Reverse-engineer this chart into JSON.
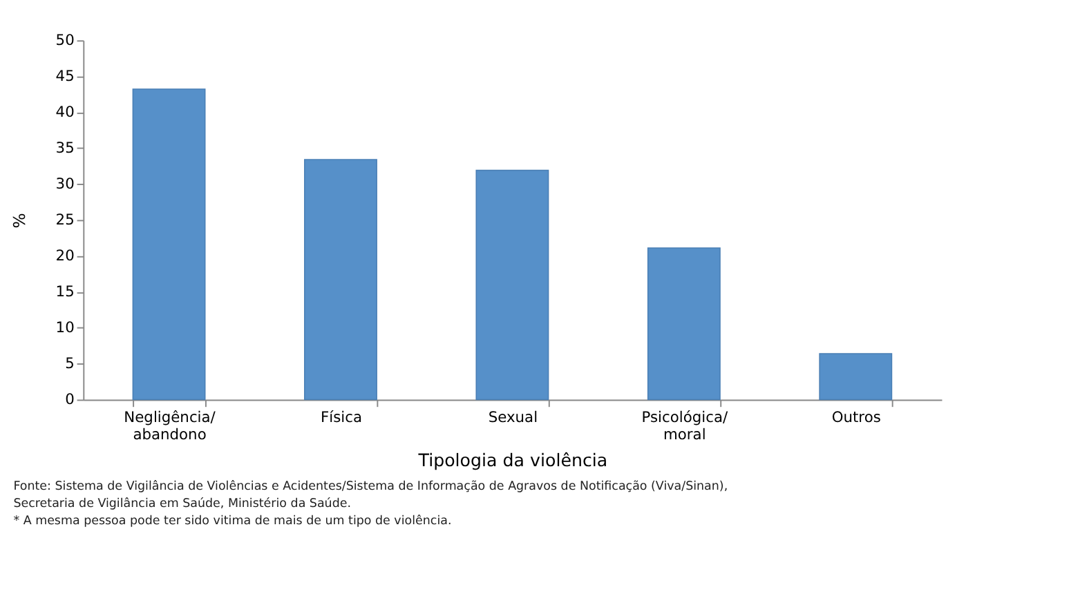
{
  "chart_data": {
    "type": "bar",
    "categories": [
      "Negligência/\nabandono",
      "Física",
      "Sexual",
      "Psicológica/\nmoral",
      "Outros"
    ],
    "values": [
      43.2,
      33.4,
      31.9,
      21.1,
      6.4
    ],
    "color": "#5690c9",
    "xlabel": "Tipologia da violência",
    "ylabel": "%",
    "ylim": [
      0,
      50
    ],
    "yticks": [
      0,
      5,
      10,
      15,
      20,
      25,
      30,
      35,
      40,
      45,
      50
    ],
    "grid": false,
    "annotations": [
      "Fonte: Sistema de Vigilância de Violências e Acidentes/Sistema de Informação de Agravos de Notificação (Viva/Sinan),\nSecretaria de Vigilância em Saúde, Ministério da Saúde.",
      "* A mesma pessoa pode ter sido vitima de mais de um tipo de violência."
    ]
  }
}
